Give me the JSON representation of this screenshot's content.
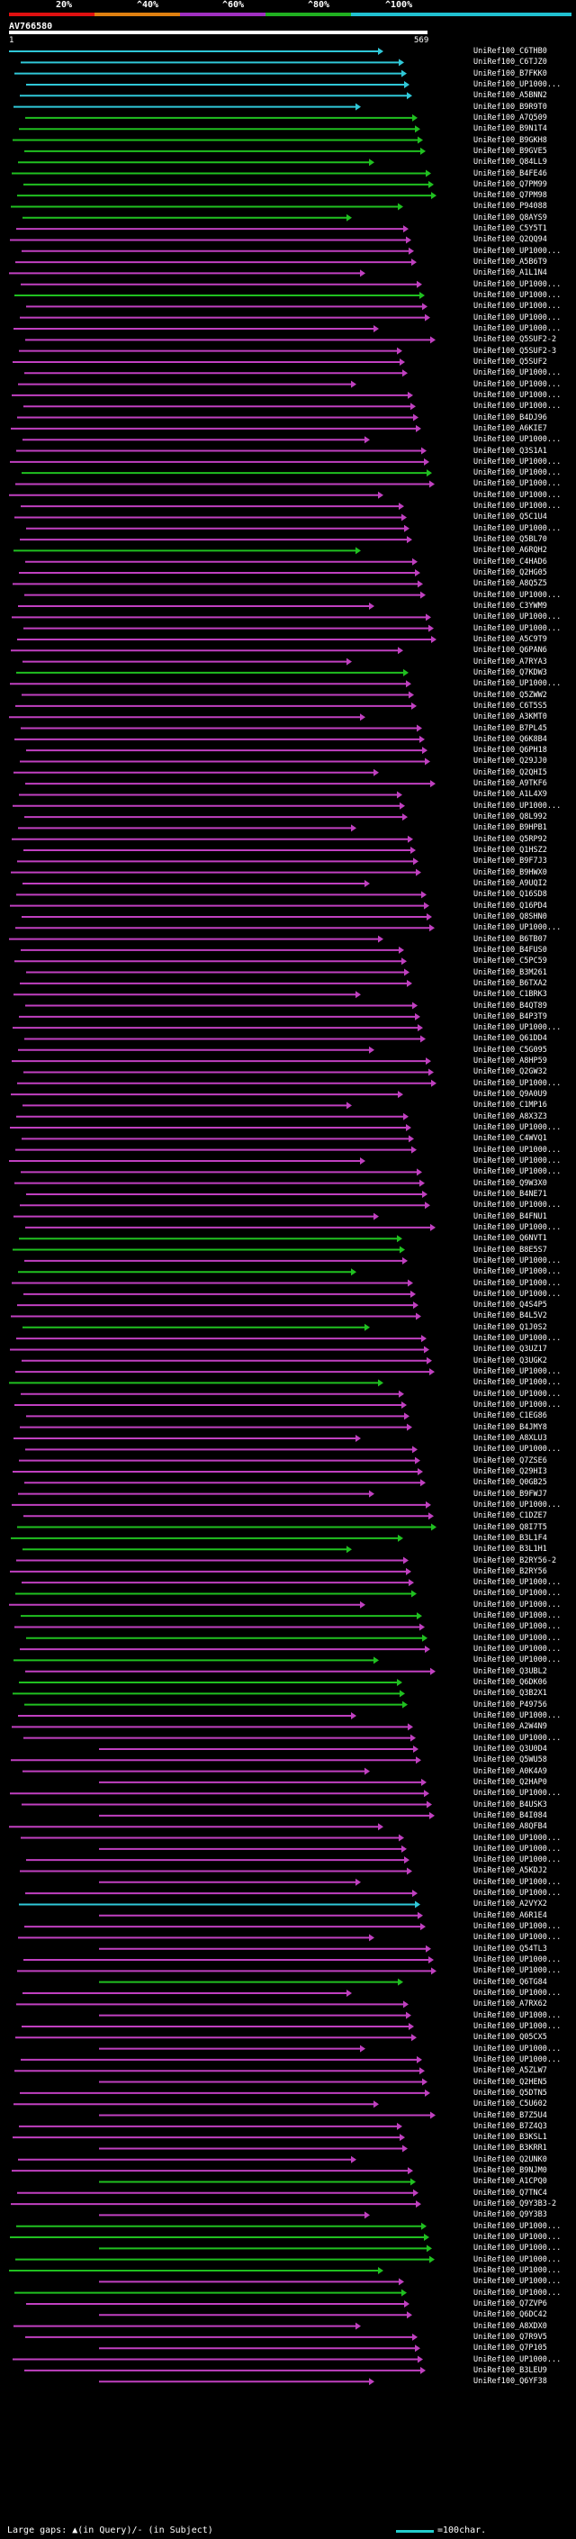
{
  "scale": {
    "labels": [
      "20%",
      "^40%",
      "^60%",
      "^80%",
      "^100%"
    ],
    "colors": [
      "#e01010",
      "#e08010",
      "#a030c0",
      "#20b020",
      "#20c0d0"
    ]
  },
  "query": {
    "title": "AV766580",
    "start": "1",
    "end": "569"
  },
  "hit_colors": {
    "cyan": "#30c8d8",
    "green": "#20c020",
    "magenta": "#c040c0"
  },
  "hits": [
    {
      "label": "UniRef100_C6THB0",
      "c": "cyan"
    },
    {
      "label": "UniRef100_C6TJZ0",
      "c": "cyan"
    },
    {
      "label": "UniRef100_B7FKK0",
      "c": "cyan"
    },
    {
      "label": "UniRef100_UP1000...",
      "c": "cyan"
    },
    {
      "label": "UniRef100_A5BNN2",
      "c": "cyan"
    },
    {
      "label": "UniRef100_B9R9T0",
      "c": "cyan"
    },
    {
      "label": "UniRef100_A7Q509",
      "c": "green"
    },
    {
      "label": "UniRef100_B9N1T4",
      "c": "green"
    },
    {
      "label": "UniRef100_B9GKH8",
      "c": "green"
    },
    {
      "label": "UniRef100_B9GVE5",
      "c": "green"
    },
    {
      "label": "UniRef100_Q84LL9",
      "c": "green"
    },
    {
      "label": "UniRef100_B4FE46",
      "c": "green"
    },
    {
      "label": "UniRef100_Q7PM99",
      "c": "green"
    },
    {
      "label": "UniRef100_Q7PM98",
      "c": "green"
    },
    {
      "label": "UniRef100_P94088",
      "c": "green"
    },
    {
      "label": "UniRef100_Q8AYS9",
      "c": "green"
    },
    {
      "label": "UniRef100_C5Y5T1",
      "c": "magenta"
    },
    {
      "label": "UniRef100_Q2QQ94",
      "c": "magenta"
    },
    {
      "label": "UniRef100_UP1000...",
      "c": "magenta"
    },
    {
      "label": "UniRef100_A5B6T9",
      "c": "magenta"
    },
    {
      "label": "UniRef100_A1L1N4",
      "c": "magenta"
    },
    {
      "label": "UniRef100_UP1000...",
      "c": "magenta"
    },
    {
      "label": "UniRef100_UP1000...",
      "c": "green"
    },
    {
      "label": "UniRef100_UP1000...",
      "c": "magenta"
    },
    {
      "label": "UniRef100_UP1000...",
      "c": "magenta"
    },
    {
      "label": "UniRef100_UP1000...",
      "c": "magenta"
    },
    {
      "label": "UniRef100_Q5SUF2-2",
      "c": "magenta"
    },
    {
      "label": "UniRef100_Q5SUF2-3",
      "c": "magenta"
    },
    {
      "label": "UniRef100_Q5SUF2",
      "c": "magenta"
    },
    {
      "label": "UniRef100_UP1000...",
      "c": "magenta"
    },
    {
      "label": "UniRef100_UP1000...",
      "c": "magenta"
    },
    {
      "label": "UniRef100_UP1000...",
      "c": "magenta"
    },
    {
      "label": "UniRef100_UP1000...",
      "c": "magenta"
    },
    {
      "label": "UniRef100_B4DJ96",
      "c": "magenta"
    },
    {
      "label": "UniRef100_A6KIE7",
      "c": "magenta"
    },
    {
      "label": "UniRef100_UP1000...",
      "c": "magenta"
    },
    {
      "label": "UniRef100_Q3S1A1",
      "c": "magenta"
    },
    {
      "label": "UniRef100_UP1000...",
      "c": "magenta"
    },
    {
      "label": "UniRef100_UP1000...",
      "c": "green"
    },
    {
      "label": "UniRef100_UP1000...",
      "c": "magenta"
    },
    {
      "label": "UniRef100_UP1000...",
      "c": "magenta"
    },
    {
      "label": "UniRef100_UP1000...",
      "c": "magenta"
    },
    {
      "label": "UniRef100_Q5C1U4",
      "c": "magenta"
    },
    {
      "label": "UniRef100_UP1000...",
      "c": "magenta"
    },
    {
      "label": "UniRef100_Q5BL70",
      "c": "magenta"
    },
    {
      "label": "UniRef100_A6RQH2",
      "c": "green"
    },
    {
      "label": "UniRef100_C4HAD6",
      "c": "magenta"
    },
    {
      "label": "UniRef100_Q2HG05",
      "c": "magenta"
    },
    {
      "label": "UniRef100_A8Q5Z5",
      "c": "magenta"
    },
    {
      "label": "UniRef100_UP1000...",
      "c": "magenta"
    },
    {
      "label": "UniRef100_C3YWM9",
      "c": "magenta"
    },
    {
      "label": "UniRef100_UP1000...",
      "c": "magenta"
    },
    {
      "label": "UniRef100_UP1000...",
      "c": "magenta"
    },
    {
      "label": "UniRef100_A5C9T9",
      "c": "magenta"
    },
    {
      "label": "UniRef100_Q6PAN6",
      "c": "magenta"
    },
    {
      "label": "UniRef100_A7RYA3",
      "c": "magenta"
    },
    {
      "label": "UniRef100_Q7KDW3",
      "c": "green"
    },
    {
      "label": "UniRef100_UP1000...",
      "c": "magenta"
    },
    {
      "label": "UniRef100_Q5ZWW2",
      "c": "magenta"
    },
    {
      "label": "UniRef100_C6T5S5",
      "c": "magenta"
    },
    {
      "label": "UniRef100_A3KMT0",
      "c": "magenta"
    },
    {
      "label": "UniRef100_B7PL45",
      "c": "magenta"
    },
    {
      "label": "UniRef100_Q6K8B4",
      "magenta": true,
      "c": "magenta"
    },
    {
      "label": "UniRef100_Q6PH18",
      "c": "magenta"
    },
    {
      "label": "UniRef100_Q29JJ0",
      "c": "magenta"
    },
    {
      "label": "UniRef100_Q2QHI5",
      "c": "magenta"
    },
    {
      "label": "UniRef100_A9TKF6",
      "c": "magenta"
    },
    {
      "label": "UniRef100_A1L4X9",
      "c": "magenta"
    },
    {
      "label": "UniRef100_UP1000...",
      "c": "magenta"
    },
    {
      "label": "UniRef100_Q8L992",
      "c": "magenta"
    },
    {
      "label": "UniRef100_B9HPB1",
      "c": "magenta"
    },
    {
      "label": "UniRef100_Q5RP92",
      "c": "magenta"
    },
    {
      "label": "UniRef100_Q1HSZ2",
      "c": "magenta"
    },
    {
      "label": "UniRef100_B9F7J3",
      "c": "magenta"
    },
    {
      "label": "UniRef100_B9HWX0",
      "c": "magenta"
    },
    {
      "label": "UniRef100_A9UQI2",
      "c": "magenta"
    },
    {
      "label": "UniRef100_Q16SD8",
      "c": "magenta"
    },
    {
      "label": "UniRef100_Q16PD4",
      "c": "magenta"
    },
    {
      "label": "UniRef100_Q8SHN0",
      "c": "magenta"
    },
    {
      "label": "UniRef100_UP1000...",
      "c": "magenta"
    },
    {
      "label": "UniRef100_B6TB07",
      "c": "magenta"
    },
    {
      "label": "UniRef100_B4FUS0",
      "c": "magenta"
    },
    {
      "label": "UniRef100_C5PC59",
      "c": "magenta"
    },
    {
      "label": "UniRef100_B3M261",
      "c": "magenta"
    },
    {
      "label": "UniRef100_B6TXA2",
      "c": "magenta"
    },
    {
      "label": "UniRef100_C1BRK3",
      "c": "magenta"
    },
    {
      "label": "UniRef100_B4QT89",
      "c": "magenta"
    },
    {
      "label": "UniRef100_B4P3T9",
      "c": "magenta"
    },
    {
      "label": "UniRef100_UP1000...",
      "c": "magenta"
    },
    {
      "label": "UniRef100_Q61DD4",
      "c": "magenta"
    },
    {
      "label": "UniRef100_C5G095",
      "c": "magenta"
    },
    {
      "label": "UniRef100_A8HP59",
      "c": "magenta"
    },
    {
      "label": "UniRef100_Q2GW32",
      "c": "magenta"
    },
    {
      "label": "UniRef100_UP1000...",
      "c": "magenta"
    },
    {
      "label": "UniRef100_Q9A0U9",
      "c": "magenta"
    },
    {
      "label": "UniRef100_C1MP16",
      "c": "magenta"
    },
    {
      "label": "UniRef100_A8X3Z3",
      "c": "magenta"
    },
    {
      "label": "UniRef100_UP1000...",
      "c": "magenta"
    },
    {
      "label": "UniRef100_C4WVQ1",
      "c": "magenta"
    },
    {
      "label": "UniRef100_UP1000...",
      "c": "magenta"
    },
    {
      "label": "UniRef100_UP1000...",
      "c": "magenta"
    },
    {
      "label": "UniRef100_UP1000...",
      "c": "magenta"
    },
    {
      "label": "UniRef100_Q9W3X0",
      "c": "magenta"
    },
    {
      "label": "UniRef100_B4NE71",
      "c": "magenta"
    },
    {
      "label": "UniRef100_UP1000...",
      "c": "magenta"
    },
    {
      "label": "UniRef100_B4FNU1",
      "c": "magenta"
    },
    {
      "label": "UniRef100_UP1000...",
      "c": "magenta"
    },
    {
      "label": "UniRef100_Q6NVT1",
      "c": "green"
    },
    {
      "label": "UniRef100_B8E5S7",
      "c": "green"
    },
    {
      "label": "UniRef100_UP1000...",
      "c": "magenta"
    },
    {
      "label": "UniRef100_UP1000...",
      "c": "green"
    },
    {
      "label": "UniRef100_UP1000...",
      "c": "magenta"
    },
    {
      "label": "UniRef100_UP1000...",
      "c": "magenta"
    },
    {
      "label": "UniRef100_Q4S4P5",
      "c": "magenta"
    },
    {
      "label": "UniRef100_B4L5V2",
      "c": "magenta"
    },
    {
      "label": "UniRef100_Q1J0S2",
      "c": "green"
    },
    {
      "label": "UniRef100_UP1000...",
      "c": "magenta"
    },
    {
      "label": "UniRef100_Q3UZ17",
      "c": "magenta"
    },
    {
      "label": "UniRef100_Q3UGK2",
      "c": "magenta"
    },
    {
      "label": "UniRef100_UP1000...",
      "c": "magenta"
    },
    {
      "label": "UniRef100_UP1000...",
      "c": "green"
    },
    {
      "label": "UniRef100_UP1000...",
      "c": "magenta"
    },
    {
      "label": "UniRef100_UP1000...",
      "c": "magenta"
    },
    {
      "label": "UniRef100_C1EG86",
      "c": "magenta"
    },
    {
      "label": "UniRef100_B4JMY8",
      "c": "magenta"
    },
    {
      "label": "UniRef100_A8XLU3",
      "c": "magenta"
    },
    {
      "label": "UniRef100_UP1000...",
      "c": "magenta"
    },
    {
      "label": "UniRef100_Q7ZSE6",
      "c": "magenta"
    },
    {
      "label": "UniRef100_Q29HI3",
      "c": "magenta"
    },
    {
      "label": "UniRef100_Q0GB25",
      "c": "magenta"
    },
    {
      "label": "UniRef100_B9FWJ7",
      "c": "magenta"
    },
    {
      "label": "UniRef100_UP1000...",
      "c": "magenta"
    },
    {
      "label": "UniRef100_C1DZE7",
      "c": "magenta"
    },
    {
      "label": "UniRef100_Q8I7T5",
      "c": "green"
    },
    {
      "label": "UniRef100_B3L1F4",
      "c": "green"
    },
    {
      "label": "UniRef100_B3L1H1",
      "c": "green"
    },
    {
      "label": "UniRef100_B2RY56-2",
      "c": "magenta"
    },
    {
      "label": "UniRef100_B2RY56",
      "c": "magenta"
    },
    {
      "label": "UniRef100_UP1000...",
      "c": "magenta"
    },
    {
      "label": "UniRef100_UP1000...",
      "c": "green"
    },
    {
      "label": "UniRef100_UP1000...",
      "c": "magenta"
    },
    {
      "label": "UniRef100_UP1000...",
      "c": "green"
    },
    {
      "label": "UniRef100_UP1000...",
      "c": "magenta"
    },
    {
      "label": "UniRef100_UP1000...",
      "c": "green"
    },
    {
      "label": "UniRef100_UP1000...",
      "c": "magenta"
    },
    {
      "label": "UniRef100_UP1000...",
      "c": "green"
    },
    {
      "label": "UniRef100_Q3UBL2",
      "c": "magenta"
    },
    {
      "label": "UniRef100_Q6DK06",
      "c": "green"
    },
    {
      "label": "UniRef100_Q3B2X1",
      "c": "green"
    },
    {
      "label": "UniRef100_P49756",
      "c": "green"
    },
    {
      "label": "UniRef100_UP1000...",
      "c": "magenta"
    },
    {
      "label": "UniRef100_A2W4N9",
      "c": "magenta"
    },
    {
      "label": "UniRef100_UP1000...",
      "c": "magenta"
    },
    {
      "label": "UniRef100_Q3U0D4",
      "c": "magenta"
    },
    {
      "label": "UniRef100_Q5WU58",
      "c": "magenta"
    },
    {
      "label": "UniRef100_A0K4A9",
      "c": "magenta"
    },
    {
      "label": "UniRef100_Q2HAP0",
      "c": "magenta"
    },
    {
      "label": "UniRef100_UP1000...",
      "c": "magenta"
    },
    {
      "label": "UniRef100_B4USK3",
      "c": "magenta"
    },
    {
      "label": "UniRef100_B4I084",
      "c": "magenta"
    },
    {
      "label": "UniRef100_A8QFB4",
      "c": "magenta"
    },
    {
      "label": "UniRef100_UP1000...",
      "c": "magenta"
    },
    {
      "label": "UniRef100_UP1000...",
      "c": "magenta"
    },
    {
      "label": "UniRef100_UP1000...",
      "c": "magenta"
    },
    {
      "label": "UniRef100_A5KDJ2",
      "c": "magenta"
    },
    {
      "label": "UniRef100_UP1000...",
      "c": "magenta"
    },
    {
      "label": "UniRef100_UP1000...",
      "c": "magenta"
    },
    {
      "label": "UniRef100_A2VYX2",
      "c": "cyan"
    },
    {
      "label": "UniRef100_A6R1E4",
      "c": "magenta"
    },
    {
      "label": "UniRef100_UP1000...",
      "c": "magenta"
    },
    {
      "label": "UniRef100_UP1000...",
      "c": "magenta"
    },
    {
      "label": "UniRef100_Q54TL3",
      "c": "magenta"
    },
    {
      "label": "UniRef100_UP1000...",
      "c": "magenta"
    },
    {
      "label": "UniRef100_UP1000...",
      "c": "magenta"
    },
    {
      "label": "UniRef100_Q6TG84",
      "c": "green"
    },
    {
      "label": "UniRef100_UP1000...",
      "c": "magenta"
    },
    {
      "label": "UniRef100_A7RX62",
      "c": "magenta"
    },
    {
      "label": "UniRef100_UP1000...",
      "c": "magenta"
    },
    {
      "label": "UniRef100_UP1000...",
      "c": "magenta"
    },
    {
      "label": "UniRef100_Q05CX5",
      "c": "magenta"
    },
    {
      "label": "UniRef100_UP1000...",
      "c": "magenta"
    },
    {
      "label": "UniRef100_UP1000...",
      "c": "magenta"
    },
    {
      "label": "UniRef100_A5ZLW7",
      "c": "magenta"
    },
    {
      "label": "UniRef100_Q2HEN5",
      "c": "magenta"
    },
    {
      "label": "UniRef100_Q5DTN5",
      "c": "magenta"
    },
    {
      "label": "UniRef100_C5U602",
      "c": "magenta"
    },
    {
      "label": "UniRef100_B7Z5U4",
      "c": "magenta"
    },
    {
      "label": "UniRef100_B7Z4Q3",
      "c": "magenta"
    },
    {
      "label": "UniRef100_B3KSL1",
      "c": "magenta"
    },
    {
      "label": "UniRef100_B3KRR1",
      "c": "magenta"
    },
    {
      "label": "UniRef100_Q2UNK0",
      "c": "magenta"
    },
    {
      "label": "UniRef100_B9NJM0",
      "c": "magenta"
    },
    {
      "label": "UniRef100_A1CPQ0",
      "c": "green"
    },
    {
      "label": "UniRef100_Q7TNC4",
      "c": "magenta"
    },
    {
      "label": "UniRef100_Q9Y3B3-2",
      "c": "magenta"
    },
    {
      "label": "UniRef100_Q9Y3B3",
      "c": "magenta"
    },
    {
      "label": "UniRef100_UP1000...",
      "c": "green"
    },
    {
      "label": "UniRef100_UP1000...",
      "c": "green"
    },
    {
      "label": "UniRef100_UP1000...",
      "c": "green"
    },
    {
      "label": "UniRef100_UP1000...",
      "c": "green"
    },
    {
      "label": "UniRef100_UP1000...",
      "c": "green"
    },
    {
      "label": "UniRef100_UP1000...",
      "c": "magenta"
    },
    {
      "label": "UniRef100_UP1000...",
      "c": "green"
    },
    {
      "label": "UniRef100_Q7ZVP6",
      "c": "magenta"
    },
    {
      "label": "UniRef100_Q6DC42",
      "c": "magenta"
    },
    {
      "label": "UniRef100_A8XDX0",
      "c": "magenta"
    },
    {
      "label": "UniRef100_Q7R9V5",
      "c": "magenta"
    },
    {
      "label": "UniRef100_Q7P105",
      "c": "magenta"
    },
    {
      "label": "UniRef100_UP1000...",
      "c": "magenta"
    },
    {
      "label": "UniRef100_B3LEU9",
      "c": "magenta"
    },
    {
      "label": "UniRef100_Q6YF38",
      "c": "magenta"
    }
  ],
  "footer": {
    "gaps_label": "Large gaps: ▲(in Query)/- (in Subject)",
    "scale_label": "=100char."
  }
}
